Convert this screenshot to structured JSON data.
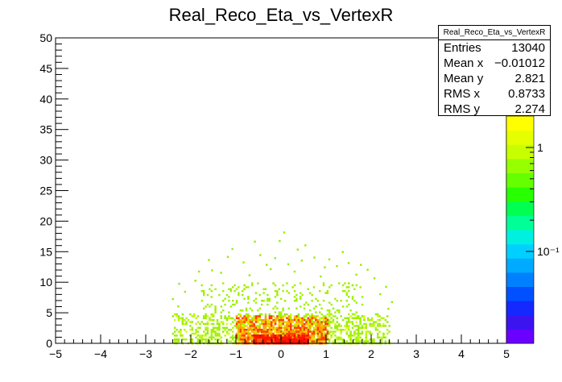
{
  "chart_data": {
    "type": "heatmap",
    "title": "Real_Reco_Eta_vs_VertexR",
    "xlabel": "",
    "ylabel": "",
    "xlim": [
      -5,
      5
    ],
    "ylim": [
      0,
      50
    ],
    "x_ticks": [
      "−5",
      "−4",
      "−3",
      "−2",
      "−1",
      "0",
      "1",
      "2",
      "3",
      "4",
      "5"
    ],
    "y_ticks": [
      "0",
      "5",
      "10",
      "15",
      "20",
      "25",
      "30",
      "35",
      "40",
      "45",
      "50"
    ],
    "z_scale": "log",
    "z_ticks": [
      {
        "label": "1",
        "value": 1
      },
      {
        "label": "10⁻¹",
        "value": 0.1
      }
    ],
    "palette": [
      "#6a00ff",
      "#3c14f0",
      "#1428ff",
      "#0050ff",
      "#0080ff",
      "#00aaff",
      "#00d0ff",
      "#00f0e0",
      "#00ff96",
      "#00ff50",
      "#28ff00",
      "#64ff00",
      "#96ff00",
      "#c8ff00",
      "#e6ff00",
      "#ffff00"
    ],
    "stats": {
      "title": "Real_Reco_Eta_vs_VertexR",
      "rows": [
        {
          "label": "Entries",
          "value": "13040"
        },
        {
          "label": "Mean x",
          "value": "−0.01012"
        },
        {
          "label": "Mean y",
          "value": "2.821"
        },
        {
          "label": "RMS x",
          "value": "0.8733"
        },
        {
          "label": "RMS y",
          "value": "2.274"
        }
      ]
    },
    "density_regions": [
      {
        "x": [
          -2.4,
          2.4
        ],
        "y": [
          0,
          5
        ],
        "level": "low",
        "color": "#8ce800"
      },
      {
        "x": [
          -1.8,
          1.8
        ],
        "y": [
          0,
          10
        ],
        "level": "sparse",
        "color": "#a0f000"
      },
      {
        "x": [
          -1.0,
          1.0
        ],
        "y": [
          0,
          4.5
        ],
        "level": "medium",
        "color": "#ff8c00"
      },
      {
        "x": [
          -0.6,
          0.6
        ],
        "y": [
          0,
          1.5
        ],
        "level": "high",
        "color": "#ff1a00"
      }
    ],
    "points": [
      [
        -0.25,
        12.3
      ],
      [
        0.14,
        13.1
      ],
      [
        -0.48,
        14.6
      ],
      [
        0.35,
        15.5
      ],
      [
        0.72,
        14.2
      ],
      [
        -0.85,
        13.4
      ],
      [
        0.95,
        12.6
      ],
      [
        -1.35,
        11.7
      ],
      [
        1.22,
        12.8
      ],
      [
        -1.55,
        12.1
      ],
      [
        1.65,
        11.4
      ],
      [
        0.05,
        18.3
      ],
      [
        -0.6,
        16.8
      ],
      [
        0.52,
        16.2
      ],
      [
        -1.1,
        15.6
      ],
      [
        1.35,
        15.1
      ],
      [
        -0.15,
        14.1
      ],
      [
        0.28,
        11.9
      ],
      [
        -0.72,
        11.3
      ],
      [
        0.86,
        11.1
      ],
      [
        -1.92,
        10.4
      ],
      [
        2.05,
        10.8
      ],
      [
        -2.28,
        9.9
      ],
      [
        2.31,
        9.4
      ],
      [
        -2.15,
        8.6
      ],
      [
        2.18,
        8.2
      ],
      [
        -2.42,
        7.4
      ],
      [
        2.44,
        6.9
      ],
      [
        -2.3,
        6.2
      ],
      [
        2.36,
        5.8
      ],
      [
        -0.05,
        16.9
      ],
      [
        0.44,
        13.7
      ],
      [
        -0.34,
        13.0
      ],
      [
        1.05,
        13.9
      ],
      [
        -1.2,
        14.3
      ],
      [
        1.48,
        13.3
      ],
      [
        -1.62,
        13.8
      ],
      [
        1.75,
        13.0
      ],
      [
        -1.84,
        11.9
      ],
      [
        1.9,
        12.2
      ]
    ]
  }
}
